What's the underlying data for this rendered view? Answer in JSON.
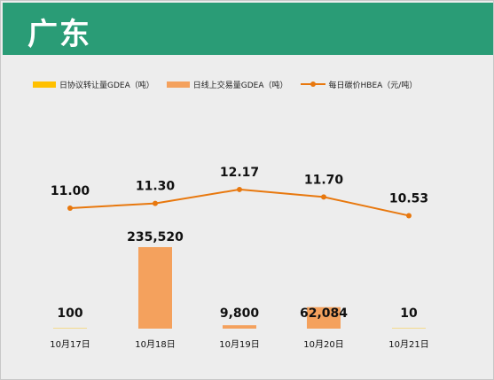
{
  "page": {
    "title": "广东"
  },
  "chart_data": {
    "type": "bar",
    "categories": [
      "10月17日",
      "10月18日",
      "10月19日",
      "10月20日",
      "10月21日"
    ],
    "series": [
      {
        "name": "日协议转让量GDEA（吨）",
        "kind": "bar",
        "color": "#ffc000",
        "values": [
          100,
          null,
          null,
          null,
          10
        ]
      },
      {
        "name": "日线上交易量GDEA（吨）",
        "kind": "bar",
        "color": "#f4a15d",
        "values": [
          null,
          235520,
          9800,
          62084,
          null
        ]
      },
      {
        "name": "每日碳价HBEA（元/吨）",
        "kind": "line",
        "color": "#e8780e",
        "values": [
          11.0,
          11.3,
          12.17,
          11.7,
          10.53
        ]
      }
    ],
    "bar_labels": [
      "100",
      "235,520",
      "9,800",
      "62,084",
      "10"
    ],
    "price_labels": [
      "11.00",
      "11.30",
      "12.17",
      "11.70",
      "10.53"
    ],
    "legend_position": "top-left",
    "grid": false
  }
}
